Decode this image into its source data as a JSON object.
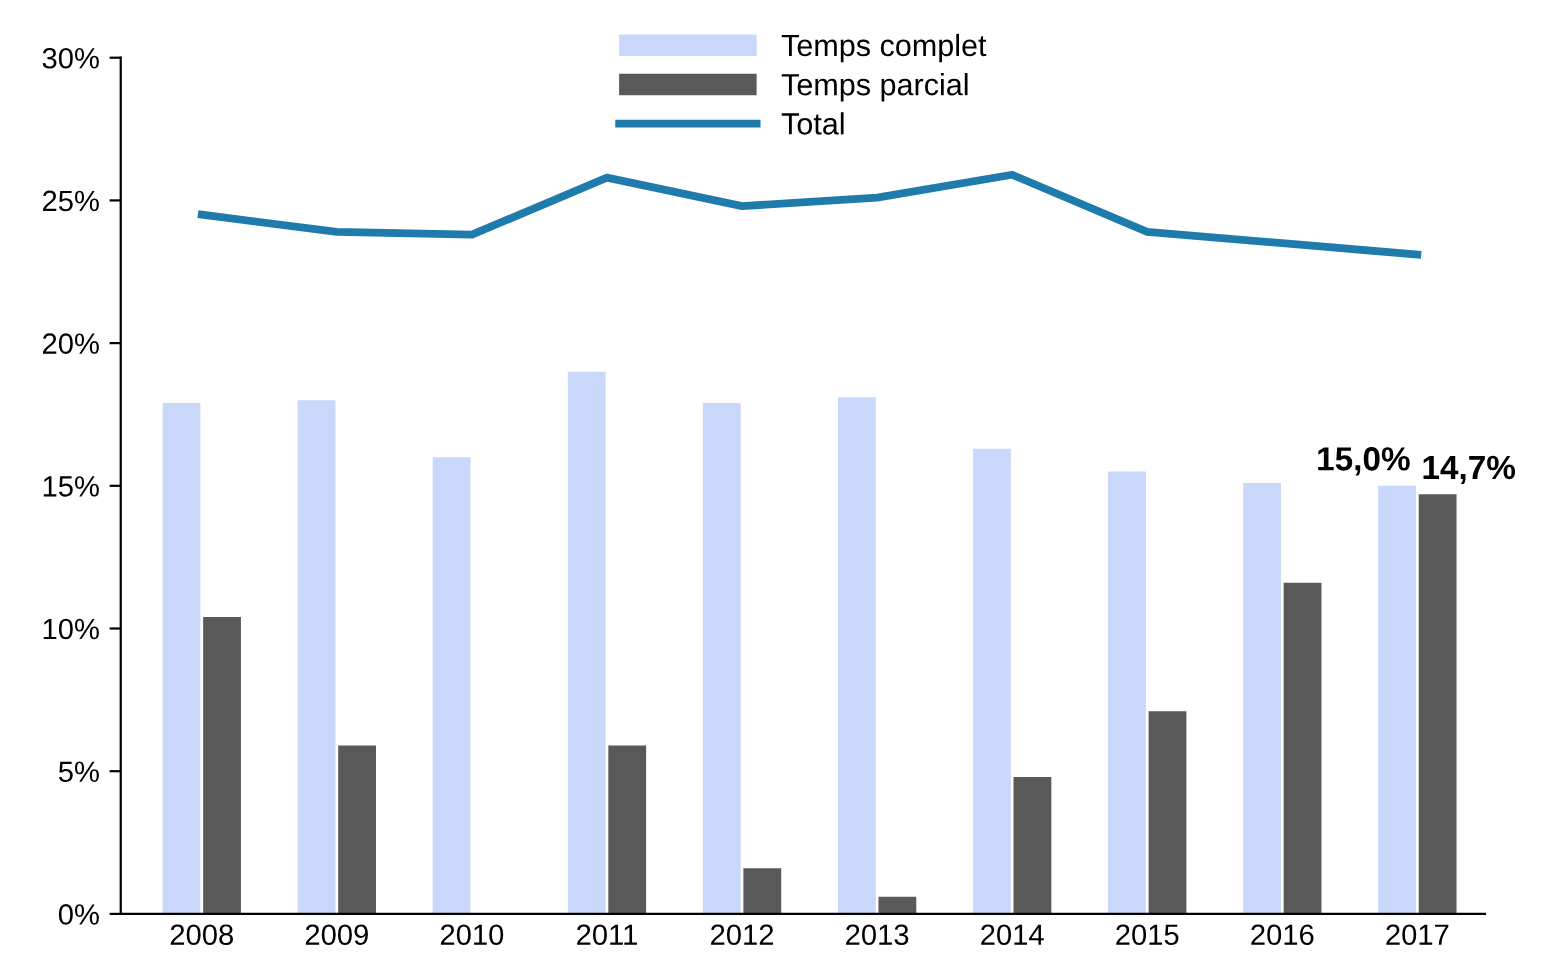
{
  "chart_data": {
    "type": "bar",
    "categories": [
      "2008",
      "2009",
      "2010",
      "2011",
      "2012",
      "2013",
      "2014",
      "2015",
      "2016",
      "2017"
    ],
    "series": [
      {
        "name": "Temps complet",
        "color": "#c9d7fb",
        "values": [
          17.9,
          18.0,
          16.0,
          19.0,
          17.9,
          18.1,
          16.3,
          15.5,
          15.1,
          15.0
        ],
        "value_labels": [
          null,
          null,
          null,
          null,
          null,
          null,
          null,
          null,
          null,
          "15,0%"
        ]
      },
      {
        "name": "Temps parcial",
        "color": "#595959",
        "values": [
          10.4,
          5.9,
          0,
          5.9,
          1.6,
          0.6,
          4.8,
          7.1,
          11.6,
          14.7
        ],
        "value_labels": [
          null,
          null,
          null,
          null,
          null,
          null,
          null,
          null,
          null,
          "14,7%"
        ]
      },
      {
        "name": "Total",
        "type": "line",
        "color": "#1f7bab",
        "values": [
          24.5,
          23.9,
          23.8,
          25.8,
          24.8,
          25.1,
          25.9,
          23.9,
          23.5,
          23.1
        ]
      }
    ],
    "ylim": [
      0,
      30
    ],
    "yticks": [
      {
        "value": 0,
        "label": "0%"
      },
      {
        "value": 5,
        "label": "5%"
      },
      {
        "value": 10,
        "label": "10%"
      },
      {
        "value": 15,
        "label": "15%"
      },
      {
        "value": 20,
        "label": "20%"
      },
      {
        "value": 25,
        "label": "25%"
      },
      {
        "value": 30,
        "label": "30%"
      }
    ],
    "grid": false,
    "legend": "top",
    "marker": "none",
    "line_style": "solid"
  }
}
